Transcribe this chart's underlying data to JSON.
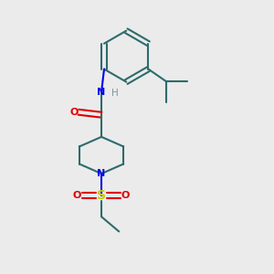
{
  "background_color": "#ebebeb",
  "bond_color": "#2d6b6b",
  "n_color": "#0000ee",
  "o_color": "#dd0000",
  "s_color": "#cccc00",
  "h_color": "#7a9a9a",
  "line_width": 1.5,
  "figsize": [
    3.0,
    3.0
  ],
  "dpi": 100,
  "xlim": [
    0,
    10
  ],
  "ylim": [
    0,
    10
  ]
}
